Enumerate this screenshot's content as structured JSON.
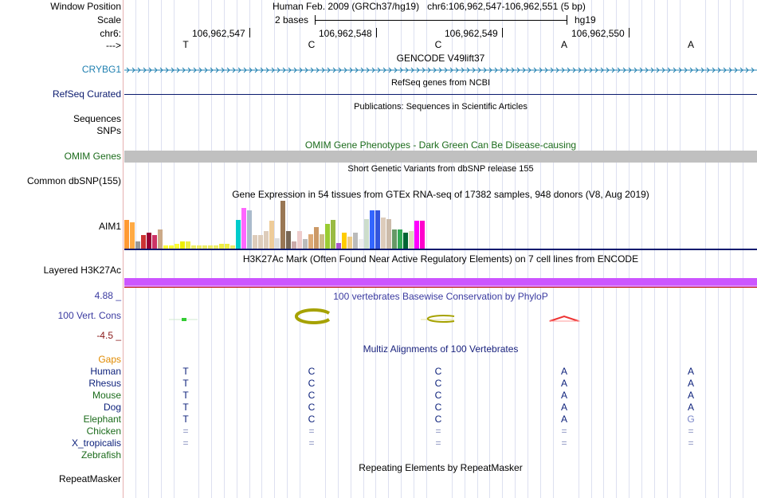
{
  "header": {
    "window_position_label": "Window Position",
    "window_position_value": "Human Feb. 2009 (GRCh37/hg19)   chr6:106,962,547-106,962,551 (5 bp)",
    "scale_label": "Scale",
    "scale_value": "2 bases",
    "assembly": "hg19",
    "chrom_label": "chr6:",
    "strand_label": "--->",
    "coords": [
      "106,962,547",
      "106,962,548",
      "106,962,549",
      "106,962,550"
    ],
    "bases": [
      "T",
      "C",
      "C",
      "A",
      "A"
    ]
  },
  "tracks": {
    "gencode_title": "GENCODE V49lift37",
    "gencode_label": "CRYBG1",
    "refseq_title": "RefSeq genes from NCBI",
    "refseq_label": "RefSeq Curated",
    "publications_title": "Publications: Sequences in Scientific Articles",
    "sequences_label": "Sequences",
    "snps_label": "SNPs",
    "omim_title": "OMIM Gene Phenotypes - Dark Green Can Be Disease-causing",
    "omim_label": "OMIM Genes",
    "dbsnp_title": "Short Genetic Variants from dbSNP release 155",
    "dbsnp_label": "Common dbSNP(155)",
    "gtex_title": "Gene Expression in 54 tissues from GTEx RNA-seq of 17382 samples, 948 donors (V8, Aug 2019)",
    "gtex_label": "AIM1",
    "h3k27ac_title": "H3K27Ac Mark (Often Found Near Active Regulatory Elements) on 7 cell lines from ENCODE",
    "h3k27ac_label": "Layered H3K27Ac",
    "cons_max": "4.88 _",
    "cons_min": "-4.5 _",
    "cons_title": "100 vertebrates Basewise Conservation by PhyloP",
    "cons_label": "100 Vert. Cons",
    "multiz_title": "Multiz Alignments of 100 Vertebrates",
    "gaps_label": "Gaps",
    "rmsk_title": "Repeating Elements by RepeatMasker",
    "rmsk_label": "RepeatMasker"
  },
  "colors": {
    "gencode": "#1e7fb0",
    "refseq": "#0a1a6e",
    "omim_title": "#1b6b1b",
    "omim_bar": "#c0c0c0",
    "cons_title": "#3a3aa0",
    "multiz_title": "#1a237e",
    "gaps": "#e08a00",
    "species": "#0b1f7a",
    "h3k27ac": "#cc55ff"
  },
  "gtex_chart": {
    "values": [
      0.6,
      0.55,
      0.15,
      0.28,
      0.33,
      0.28,
      0.4,
      0.07,
      0.07,
      0.1,
      0.15,
      0.15,
      0.07,
      0.07,
      0.07,
      0.07,
      0.07,
      0.1,
      0.1,
      0.07,
      0.6,
      0.85,
      0.8,
      0.28,
      0.28,
      0.36,
      0.58,
      0.22,
      1.0,
      0.36,
      0.15,
      0.36,
      0.2,
      0.3,
      0.45,
      0.3,
      0.52,
      0.6,
      0.12,
      0.33,
      0.25,
      0.33,
      0.2,
      0.62,
      0.8,
      0.8,
      0.65,
      0.62,
      0.4,
      0.4,
      0.33,
      0.36,
      0.58,
      0.58
    ],
    "colors": [
      "#ff9933",
      "#ffaa44",
      "#999999",
      "#cc3333",
      "#990033",
      "#cc3366",
      "#ccaa88",
      "#ffff33",
      "#ffff33",
      "#ffff33",
      "#eeee00",
      "#eeee44",
      "#eeee66",
      "#eeee66",
      "#eeee66",
      "#eeee66",
      "#eeee66",
      "#eeee44",
      "#eeee44",
      "#eeee66",
      "#00cccc",
      "#ff66ff",
      "#aabbcc",
      "#ddccbb",
      "#ddccbb",
      "#ddccbb",
      "#eecc99",
      "#dddddd",
      "#997755",
      "#776655",
      "#ccaaaa",
      "#eecccc",
      "#bbbbbb",
      "#ddaa77",
      "#cc9966",
      "#ccbb88",
      "#99cc33",
      "#99bb44",
      "#aa55cc",
      "#ffcc00",
      "#eecc88",
      "#bbbbbb",
      "#eeeeee",
      "#ccddcc",
      "#3366ff",
      "#3355dd",
      "#ddccbb",
      "#ccbbaa",
      "#669966",
      "#33aa55",
      "#006633",
      "#ddddbb",
      "#ff00ff",
      "#ff00cc"
    ]
  },
  "multiz": {
    "species": [
      {
        "name": "Human",
        "bases": [
          "T",
          "C",
          "C",
          "A",
          "A"
        ]
      },
      {
        "name": "Rhesus",
        "bases": [
          "T",
          "C",
          "C",
          "A",
          "A"
        ]
      },
      {
        "name": "Mouse",
        "bases": [
          "T",
          "C",
          "C",
          "A",
          "A"
        ]
      },
      {
        "name": "Dog",
        "bases": [
          "T",
          "C",
          "C",
          "A",
          "A"
        ]
      },
      {
        "name": "Elephant",
        "bases": [
          "T",
          "C",
          "C",
          "A",
          "G"
        ]
      },
      {
        "name": "Chicken",
        "bases": [
          "=",
          "=",
          "=",
          "=",
          "="
        ]
      },
      {
        "name": "X_tropicalis",
        "bases": [
          "=",
          "=",
          "=",
          "=",
          "="
        ]
      },
      {
        "name": "Zebrafish",
        "bases": [
          "",
          "",
          "",
          "",
          ""
        ]
      }
    ]
  }
}
